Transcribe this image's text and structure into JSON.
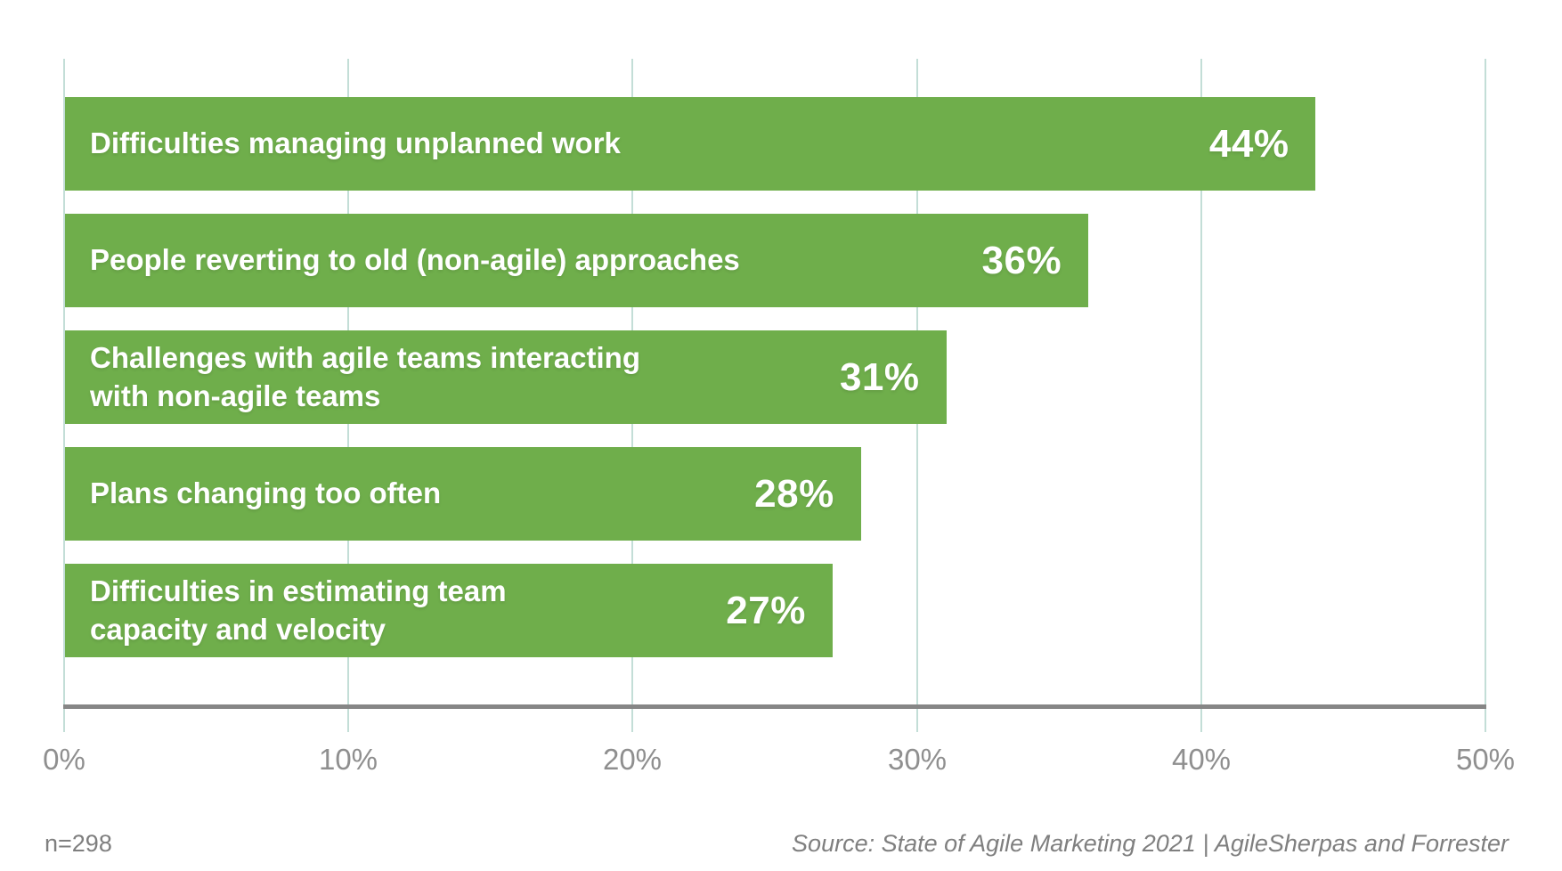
{
  "chart_data": {
    "type": "bar",
    "orientation": "horizontal",
    "title": "",
    "xlabel": "",
    "ylabel": "",
    "categories": [
      "Difficulties managing unplanned work",
      "People reverting to old (non-agile) approaches",
      "Challenges with agile teams interacting\nwith non-agile teams",
      "Plans changing too often",
      "Difficulties in estimating team\ncapacity and velocity"
    ],
    "values": [
      44,
      36,
      31,
      28,
      27
    ],
    "value_labels": [
      "44%",
      "36%",
      "31%",
      "28%",
      "27%"
    ],
    "xlim": [
      0,
      50
    ],
    "x_ticks": [
      "0%",
      "10%",
      "20%",
      "30%",
      "40%",
      "50%"
    ],
    "x_tick_values": [
      0,
      10,
      20,
      30,
      40,
      50
    ],
    "grid": "vertical-gridlines-on",
    "legend": "none",
    "value_label_position": "inside-bar-right",
    "category_label_position": "inside-bar-left"
  },
  "footer": {
    "sample_size": "n=298",
    "source": "Source: State of Agile Marketing 2021 | AgileSherpas and Forrester"
  },
  "colors": {
    "bar-green": "#6fae4b",
    "gridline": "#c3ded7",
    "axis-line": "#868686",
    "tick-text": "#8f8f8f",
    "footnote-text": "#7f7f7f",
    "bar-text": "#ffffff",
    "page-bg": "#ffffff"
  }
}
